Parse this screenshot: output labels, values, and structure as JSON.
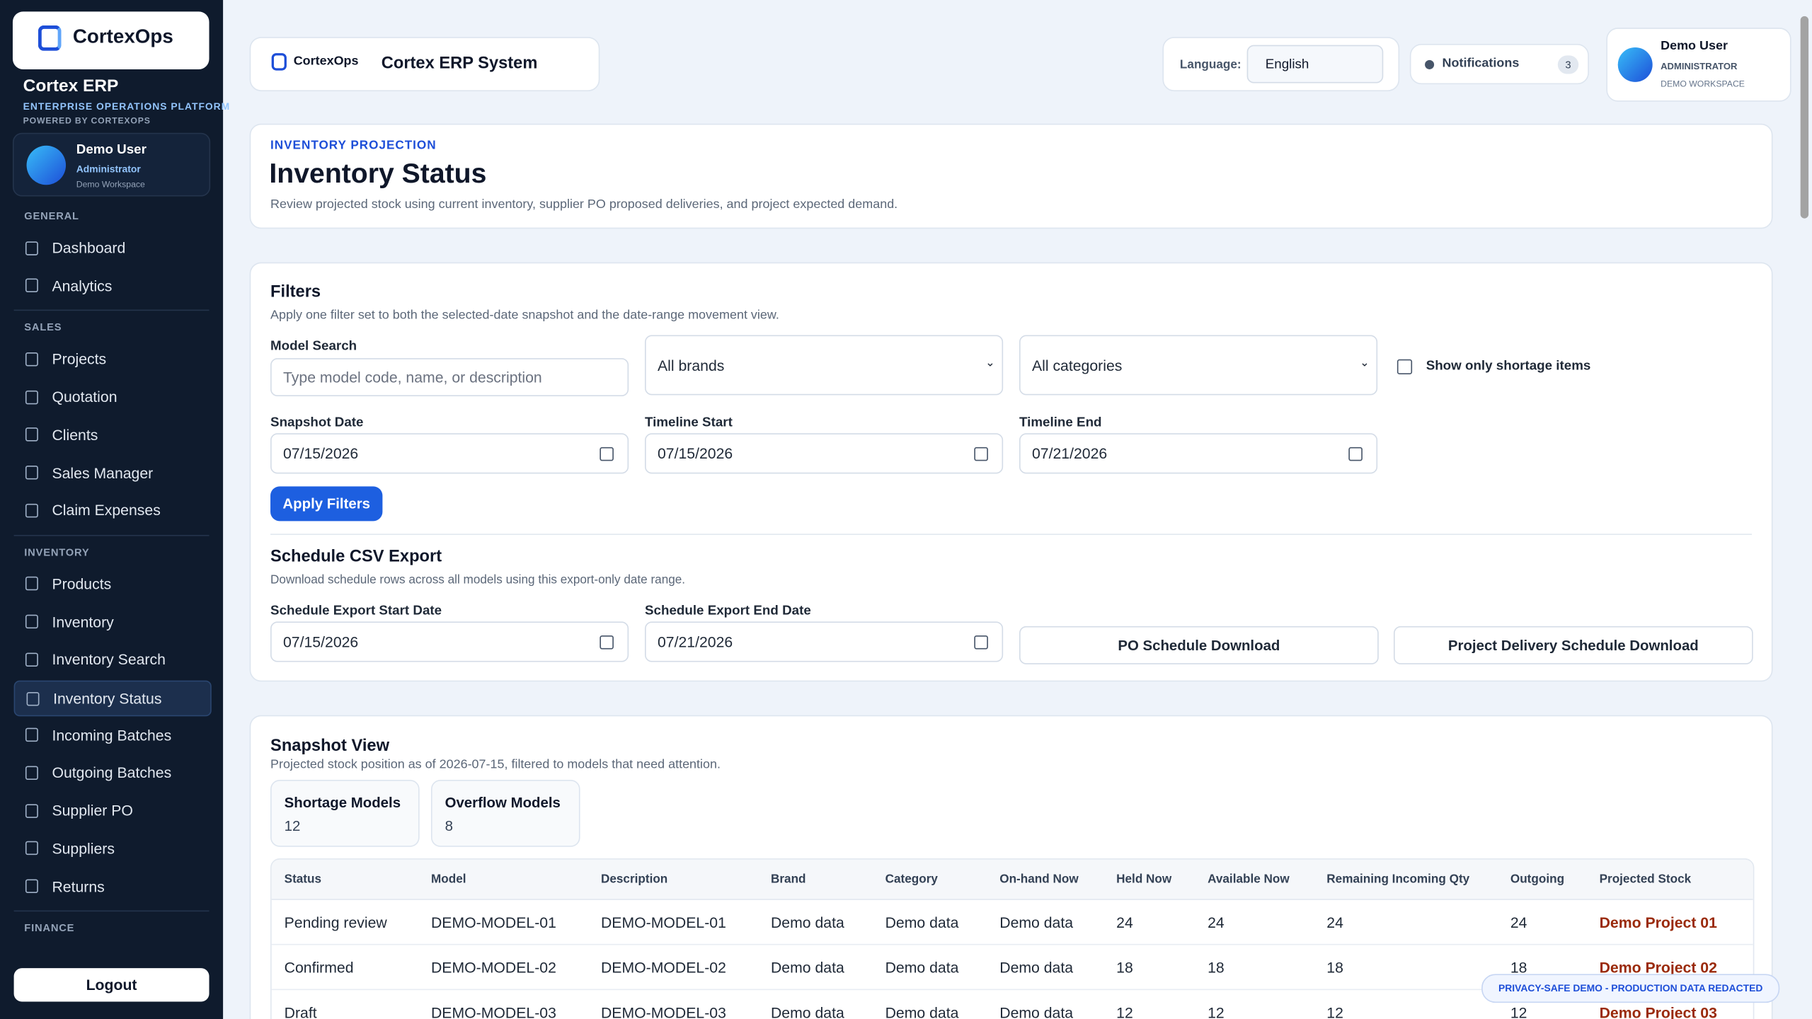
{
  "sidebar": {
    "logo": "CortexOps",
    "app_name": "Cortex ERP",
    "platform": "ENTERPRISE OPERATIONS PLATFORM",
    "powered": "POWERED BY CORTEXOPS",
    "user": {
      "name": "Demo User",
      "role": "Administrator",
      "workspace": "Demo Workspace"
    },
    "sections": [
      {
        "title": "GENERAL",
        "items": [
          "Dashboard",
          "Analytics"
        ]
      },
      {
        "title": "SALES",
        "items": [
          "Projects",
          "Quotation",
          "Clients",
          "Sales Manager",
          "Claim Expenses"
        ]
      },
      {
        "title": "INVENTORY",
        "items": [
          "Products",
          "Inventory",
          "Inventory Search",
          "Inventory Status",
          "Incoming Batches",
          "Outgoing Batches",
          "Supplier PO",
          "Suppliers",
          "Returns"
        ]
      },
      {
        "title": "FINANCE",
        "items": []
      }
    ],
    "logout": "Logout"
  },
  "header": {
    "brand": "CortexOps",
    "title": "Cortex ERP System",
    "language_label": "Language:",
    "language": "English",
    "notifications": "Notifications",
    "notification_count": 3,
    "user": {
      "name": "Demo User",
      "role": "ADMINISTRATOR",
      "workspace": "DEMO WORKSPACE"
    }
  },
  "page": {
    "eyebrow": "INVENTORY PROJECTION",
    "title": "Inventory Status",
    "description": "Review projected stock using current inventory, supplier PO proposed deliveries, and project expected demand."
  },
  "filters": {
    "title": "Filters",
    "description": "Apply one filter set to both the selected-date snapshot and the date-range movement view.",
    "model_search_label": "Model Search",
    "model_search_placeholder": "Type model code, name, or description",
    "brand": "All brands",
    "category": "All categories",
    "shortage_only": "Show only shortage items",
    "snapshot_date_label": "Snapshot Date",
    "snapshot_date": "07/15/2026",
    "timeline_start_label": "Timeline Start",
    "timeline_start": "07/15/2026",
    "timeline_end_label": "Timeline End",
    "timeline_end": "07/21/2026",
    "apply": "Apply Filters"
  },
  "export": {
    "title": "Schedule CSV Export",
    "description": "Download schedule rows across all models using this export-only date range.",
    "start_label": "Schedule Export Start Date",
    "start": "07/15/2026",
    "end_label": "Schedule Export End Date",
    "end": "07/21/2026",
    "po_button": "PO Schedule Download",
    "project_button": "Project Delivery Schedule Download"
  },
  "snapshot": {
    "title": "Snapshot View",
    "description": "Projected stock position as of 2026-07-15, filtered to models that need attention.",
    "cards": [
      {
        "label": "Shortage Models",
        "value": 12
      },
      {
        "label": "Overflow Models",
        "value": 8
      }
    ],
    "columns": [
      "Status",
      "Model",
      "Description",
      "Brand",
      "Category",
      "On-hand Now",
      "Held Now",
      "Available Now",
      "Remaining Incoming Qty",
      "Outgoing",
      "Projected Stock"
    ],
    "rows": [
      [
        "Pending review",
        "DEMO-MODEL-01",
        "DEMO-MODEL-01",
        "Demo data",
        "Demo data",
        "Demo data",
        24,
        24,
        24,
        24,
        "Demo Project 01"
      ],
      [
        "Confirmed",
        "DEMO-MODEL-02",
        "DEMO-MODEL-02",
        "Demo data",
        "Demo data",
        "Demo data",
        18,
        18,
        18,
        18,
        "Demo Project 02"
      ],
      [
        "Draft",
        "DEMO-MODEL-03",
        "DEMO-MODEL-03",
        "Demo data",
        "Demo data",
        "Demo data",
        12,
        12,
        12,
        12,
        "Demo Project 03"
      ]
    ]
  },
  "badge": "PRIVACY-SAFE DEMO - PRODUCTION DATA REDACTED"
}
